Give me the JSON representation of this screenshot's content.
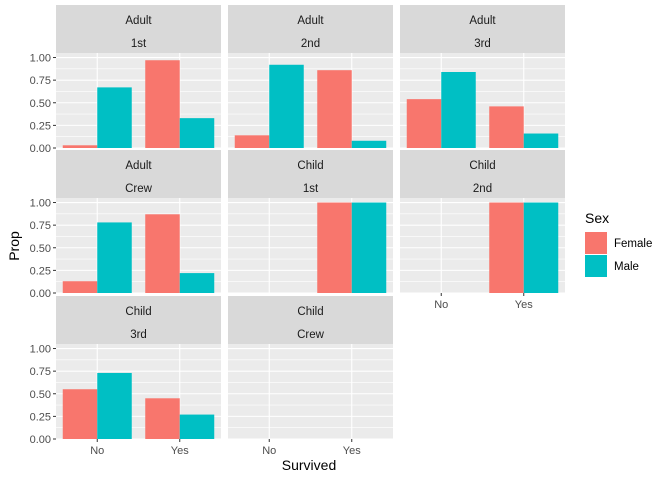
{
  "chart_data": {
    "type": "bar",
    "xlabel": "Survived",
    "ylabel": "Prop",
    "categories": [
      "No",
      "Yes"
    ],
    "ylim": [
      0,
      1.05
    ],
    "yticks": [
      0,
      0.25,
      0.5,
      0.75,
      1.0
    ],
    "ytick_labels": [
      "0.00",
      "0.25",
      "0.50",
      "0.75",
      "1.00"
    ],
    "legend": {
      "title": "Sex",
      "position": "right",
      "entries": [
        {
          "name": "Female",
          "color": "#F8766D"
        },
        {
          "name": "Male",
          "color": "#00BFC4"
        }
      ]
    },
    "colors": {
      "panel_bg": "#EBEBEB",
      "strip_bg": "#D9D9D9",
      "grid_major": "#FFFFFF",
      "female": "#F8766D",
      "male": "#00BFC4"
    },
    "panels": [
      {
        "strip": [
          "Adult",
          "1st"
        ],
        "Female": [
          0.03,
          0.97
        ],
        "Male": [
          0.67,
          0.33
        ]
      },
      {
        "strip": [
          "Adult",
          "2nd"
        ],
        "Female": [
          0.14,
          0.86
        ],
        "Male": [
          0.92,
          0.08
        ]
      },
      {
        "strip": [
          "Adult",
          "3rd"
        ],
        "Female": [
          0.54,
          0.46
        ],
        "Male": [
          0.84,
          0.16
        ]
      },
      {
        "strip": [
          "Adult",
          "Crew"
        ],
        "Female": [
          0.13,
          0.87
        ],
        "Male": [
          0.78,
          0.22
        ]
      },
      {
        "strip": [
          "Child",
          "1st"
        ],
        "Female": [
          null,
          1.0
        ],
        "Male": [
          null,
          1.0
        ]
      },
      {
        "strip": [
          "Child",
          "2nd"
        ],
        "Female": [
          null,
          1.0
        ],
        "Male": [
          null,
          1.0
        ]
      },
      {
        "strip": [
          "Child",
          "3rd"
        ],
        "Female": [
          0.55,
          0.45
        ],
        "Male": [
          0.73,
          0.27
        ]
      },
      {
        "strip": [
          "Child",
          "Crew"
        ],
        "Female": [
          null,
          null
        ],
        "Male": [
          null,
          null
        ]
      }
    ]
  }
}
